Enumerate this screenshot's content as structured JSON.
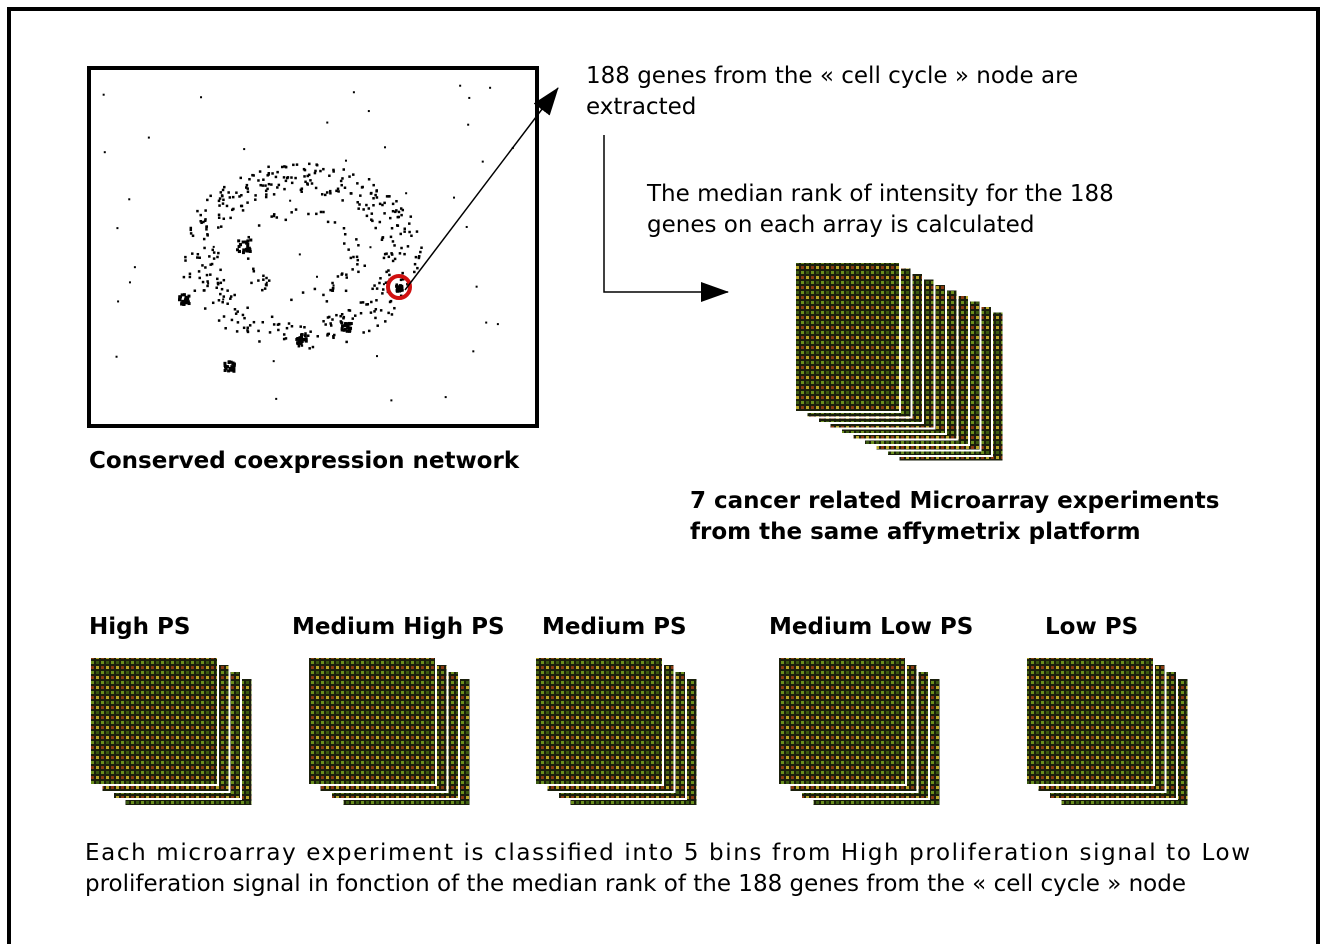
{
  "network": {
    "label": "Conserved coexpression network"
  },
  "extraction": {
    "lines": [
      "188 genes from the « cell cycle » node are",
      "extracted"
    ]
  },
  "median_rank": {
    "lines": [
      "The median rank of intensity for the 188",
      "genes on each array is calculated"
    ]
  },
  "experiments": {
    "lines": [
      "7 cancer related Microarray experiments",
      "from the same affymetrix platform"
    ]
  },
  "bins": [
    {
      "label": "High PS"
    },
    {
      "label": "Medium High PS"
    },
    {
      "label": "Medium PS"
    },
    {
      "label": "Medium Low PS"
    },
    {
      "label": "Low PS"
    }
  ],
  "caption": {
    "lines": [
      "Each microarray experiment is classified into 5 bins from High proliferation signal to Low",
      "proliferation signal in fonction of the median rank of the 188 genes from the « cell cycle » node"
    ]
  }
}
